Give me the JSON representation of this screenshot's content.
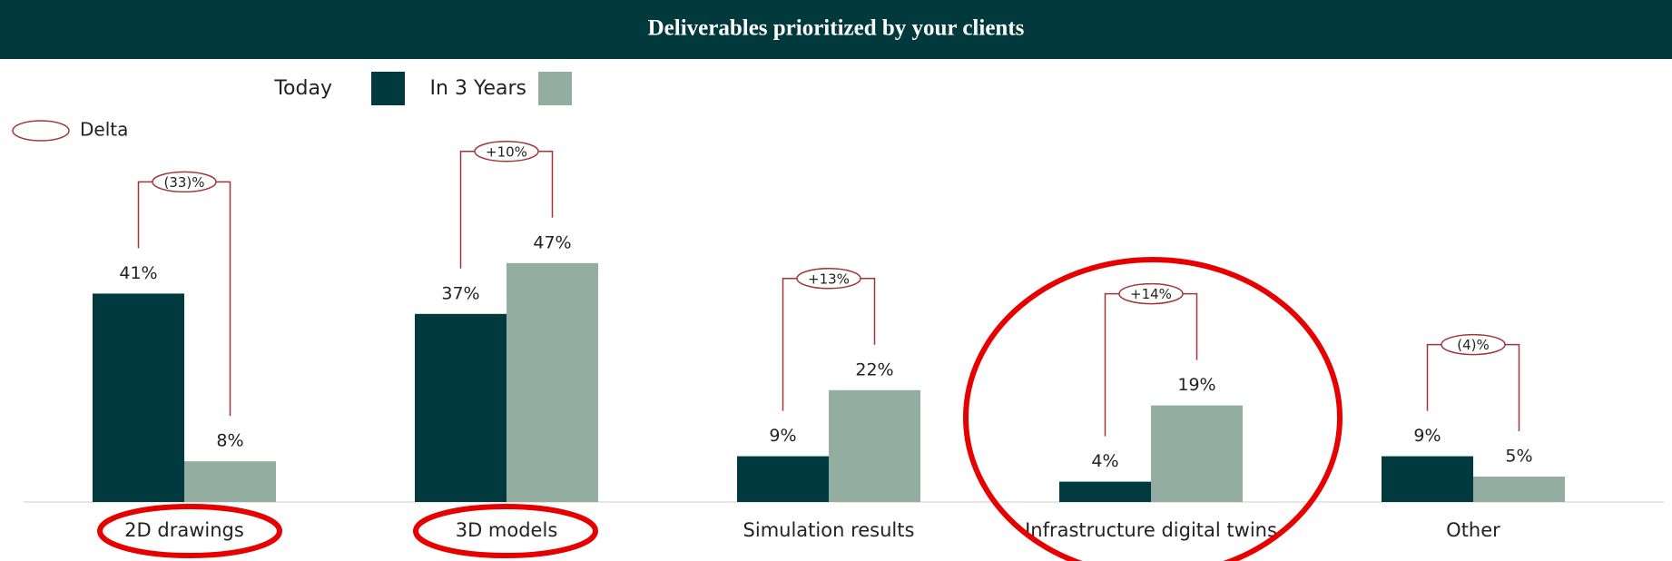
{
  "chart_data": {
    "type": "bar",
    "title": "Deliverables prioritized by your clients",
    "categories": [
      "2D drawings",
      "3D models",
      "Simulation results",
      "Infrastructure digital twins",
      "Other"
    ],
    "series": [
      {
        "name": "Today",
        "color": "#003a3f",
        "values": [
          41,
          37,
          9,
          4,
          9
        ],
        "value_labels": [
          "41%",
          "37%",
          "9%",
          "4%",
          "9%"
        ]
      },
      {
        "name": "In 3 Years",
        "color": "#93ada0",
        "values": [
          8,
          47,
          22,
          19,
          5
        ],
        "value_labels": [
          "8%",
          "47%",
          "22%",
          "19%",
          "5%"
        ]
      }
    ],
    "deltas": {
      "name": "Delta",
      "color": "#a0353b",
      "values": [
        -33,
        10,
        13,
        14,
        -4
      ],
      "value_labels": [
        "(33)%",
        "+10%",
        "+13%",
        "+14%",
        "(4)%"
      ]
    }
  }
}
